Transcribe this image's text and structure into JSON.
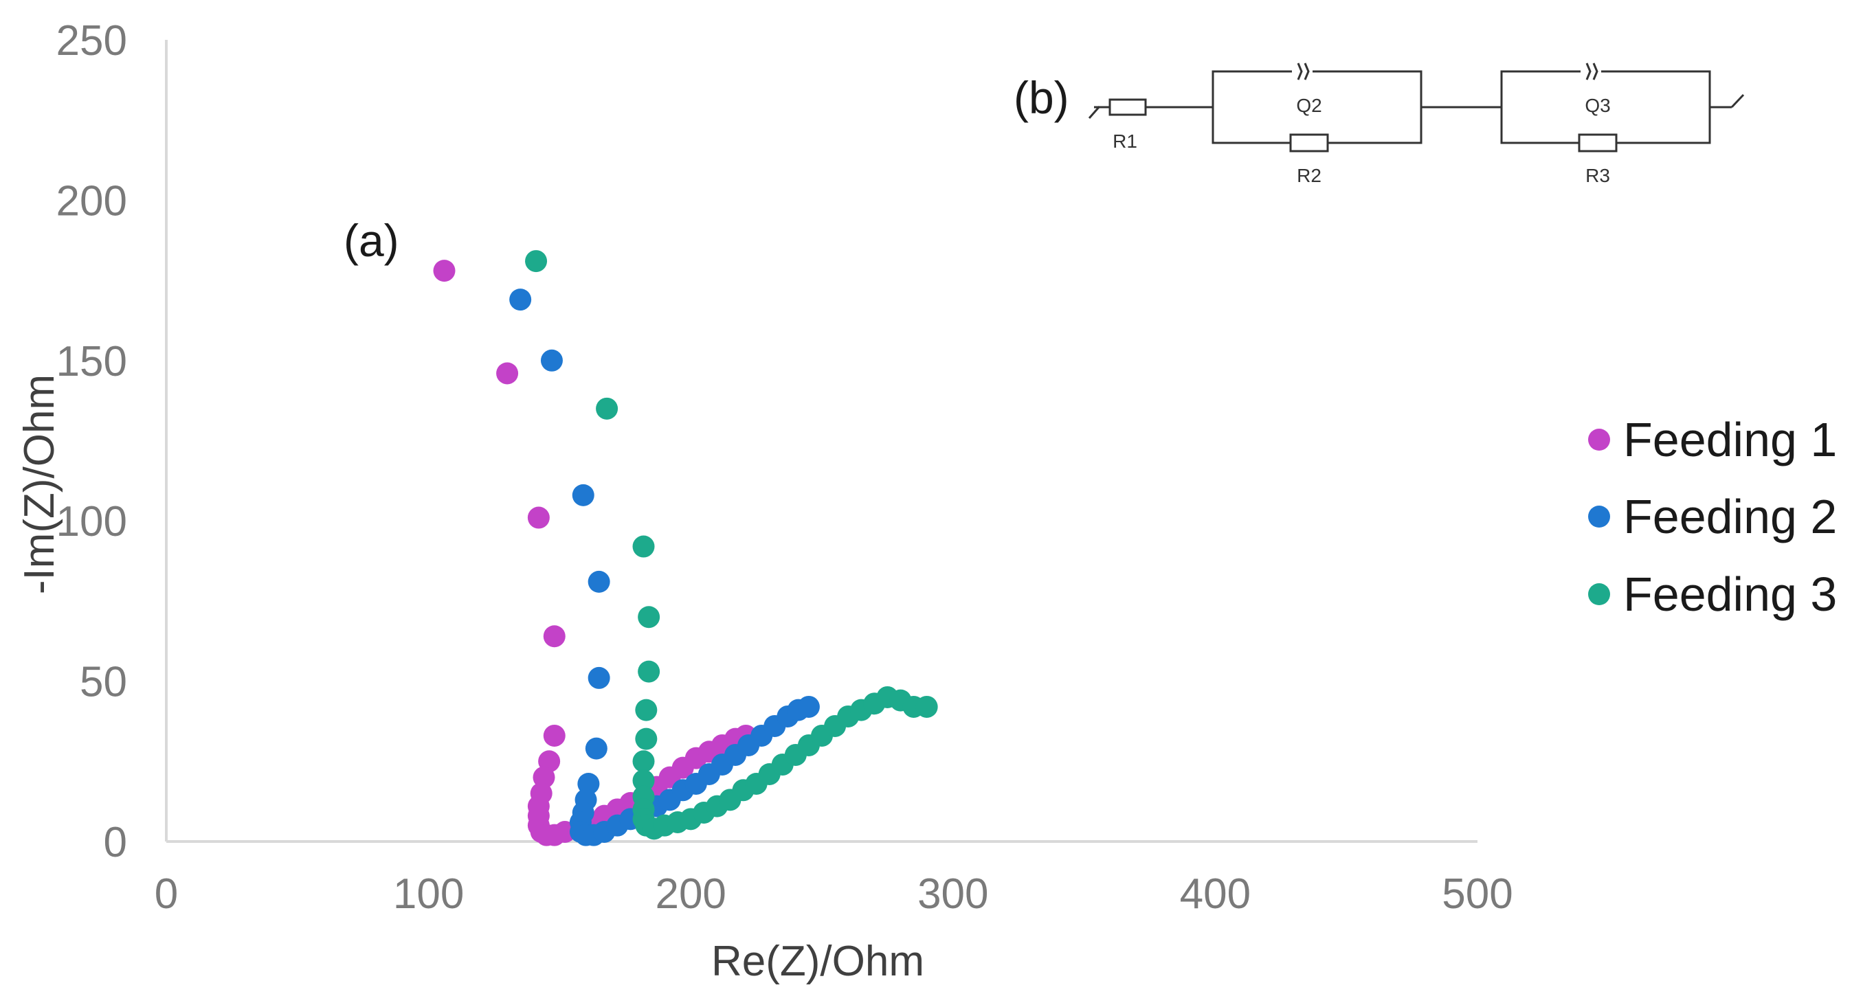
{
  "chart_data": {
    "type": "scatter",
    "panel_label": "(a)",
    "xlabel": "Re(Z)/Ohm",
    "ylabel": "-Im(Z)/Ohm",
    "xlim": [
      0,
      500
    ],
    "ylim": [
      0,
      250
    ],
    "x_ticks": [
      "0",
      "100",
      "200",
      "300",
      "400",
      "500"
    ],
    "y_ticks": [
      "0",
      "50",
      "100",
      "150",
      "200",
      "250"
    ],
    "grid": false,
    "legend_position": "right",
    "series": [
      {
        "name": "Feeding 1",
        "color": "#c342c8",
        "points": [
          [
            106,
            178
          ],
          [
            130,
            146
          ],
          [
            142,
            101
          ],
          [
            148,
            64
          ],
          [
            148,
            33
          ],
          [
            146,
            25
          ],
          [
            144,
            20
          ],
          [
            143,
            15
          ],
          [
            142,
            11
          ],
          [
            142,
            8
          ],
          [
            142,
            5
          ],
          [
            143,
            3
          ],
          [
            145,
            2
          ],
          [
            148,
            2
          ],
          [
            152,
            3
          ],
          [
            157,
            4
          ],
          [
            162,
            6
          ],
          [
            167,
            8
          ],
          [
            172,
            10
          ],
          [
            177,
            12
          ],
          [
            182,
            14
          ],
          [
            187,
            17
          ],
          [
            192,
            20
          ],
          [
            197,
            23
          ],
          [
            202,
            26
          ],
          [
            207,
            28
          ],
          [
            212,
            30
          ],
          [
            217,
            32
          ],
          [
            221,
            33
          ]
        ]
      },
      {
        "name": "Feeding 2",
        "color": "#1f78d1",
        "points": [
          [
            135,
            169
          ],
          [
            147,
            150
          ],
          [
            159,
            108
          ],
          [
            165,
            81
          ],
          [
            165,
            51
          ],
          [
            164,
            29
          ],
          [
            161,
            18
          ],
          [
            160,
            13
          ],
          [
            159,
            9
          ],
          [
            158,
            6
          ],
          [
            158,
            3
          ],
          [
            160,
            2
          ],
          [
            163,
            2
          ],
          [
            167,
            3
          ],
          [
            172,
            5
          ],
          [
            177,
            7
          ],
          [
            182,
            9
          ],
          [
            187,
            11
          ],
          [
            192,
            13
          ],
          [
            197,
            16
          ],
          [
            202,
            18
          ],
          [
            207,
            21
          ],
          [
            212,
            24
          ],
          [
            217,
            27
          ],
          [
            222,
            30
          ],
          [
            227,
            33
          ],
          [
            232,
            36
          ],
          [
            237,
            39
          ],
          [
            241,
            41
          ],
          [
            245,
            42
          ]
        ]
      },
      {
        "name": "Feeding 3",
        "color": "#1daa8c",
        "points": [
          [
            141,
            181
          ],
          [
            168,
            135
          ],
          [
            182,
            92
          ],
          [
            184,
            70
          ],
          [
            184,
            53
          ],
          [
            183,
            41
          ],
          [
            183,
            32
          ],
          [
            182,
            25
          ],
          [
            182,
            19
          ],
          [
            182,
            14
          ],
          [
            182,
            10
          ],
          [
            182,
            7
          ],
          [
            183,
            5
          ],
          [
            186,
            4
          ],
          [
            190,
            5
          ],
          [
            195,
            6
          ],
          [
            200,
            7
          ],
          [
            205,
            9
          ],
          [
            210,
            11
          ],
          [
            215,
            13
          ],
          [
            220,
            16
          ],
          [
            225,
            18
          ],
          [
            230,
            21
          ],
          [
            235,
            24
          ],
          [
            240,
            27
          ],
          [
            245,
            30
          ],
          [
            250,
            33
          ],
          [
            255,
            36
          ],
          [
            260,
            39
          ],
          [
            265,
            41
          ],
          [
            270,
            43
          ],
          [
            275,
            45
          ],
          [
            280,
            44
          ],
          [
            285,
            42
          ],
          [
            290,
            42
          ]
        ]
      }
    ]
  },
  "inset": {
    "panel_label": "(b)",
    "components": {
      "r1": "R1",
      "q2": "Q2",
      "r2": "R2",
      "q3": "Q3",
      "r3": "R3"
    }
  }
}
